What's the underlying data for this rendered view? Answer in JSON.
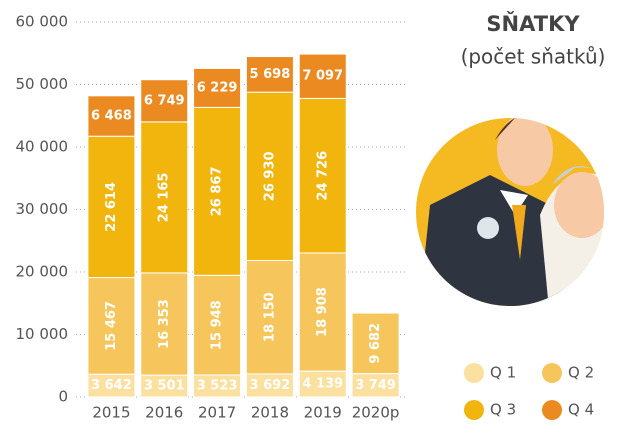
{
  "chart_data": {
    "type": "stacked_bar",
    "title": "SŇATKY",
    "subtitle": "(počet sňatků)",
    "categories": [
      "2015",
      "2016",
      "2017",
      "2018",
      "2019",
      "2020p"
    ],
    "series": [
      {
        "name": "Q 1",
        "color": "#fbe0a0",
        "values": [
          3642,
          3501,
          3523,
          3692,
          4139,
          3749
        ],
        "value_labels": [
          "3 642",
          "3 501",
          "3 523",
          "3 692",
          "4 139",
          "3 749"
        ]
      },
      {
        "name": "Q 2",
        "color": "#f6c65c",
        "values": [
          15467,
          16353,
          15948,
          18150,
          18908,
          9682
        ],
        "value_labels": [
          "15 467",
          "16 353",
          "15 948",
          "18 150",
          "18 908",
          "9 682"
        ]
      },
      {
        "name": "Q 3",
        "color": "#f1b50e",
        "values": [
          22614,
          24165,
          26867,
          26930,
          24726,
          null
        ],
        "value_labels": [
          "22 614",
          "24 165",
          "26 867",
          "26 930",
          "24 726",
          null
        ]
      },
      {
        "name": "Q 4",
        "color": "#ec8a22",
        "values": [
          6468,
          6749,
          6229,
          5698,
          7097,
          null
        ],
        "value_labels": [
          "6 468",
          "6 749",
          "6 229",
          "5 698",
          "7 097",
          null
        ]
      }
    ],
    "ylim": [
      0,
      60000
    ],
    "yticks": [
      0,
      {
        "value": 10000,
        "label": "10 000"
      },
      {
        "value": 20000,
        "label": "20 000"
      },
      {
        "value": 30000,
        "label": "30 000"
      },
      {
        "value": 40000,
        "label": "40 000"
      },
      {
        "value": 50000,
        "label": "50 000"
      },
      {
        "value": 60000,
        "label": "60 000"
      }
    ],
    "grid": true
  }
}
